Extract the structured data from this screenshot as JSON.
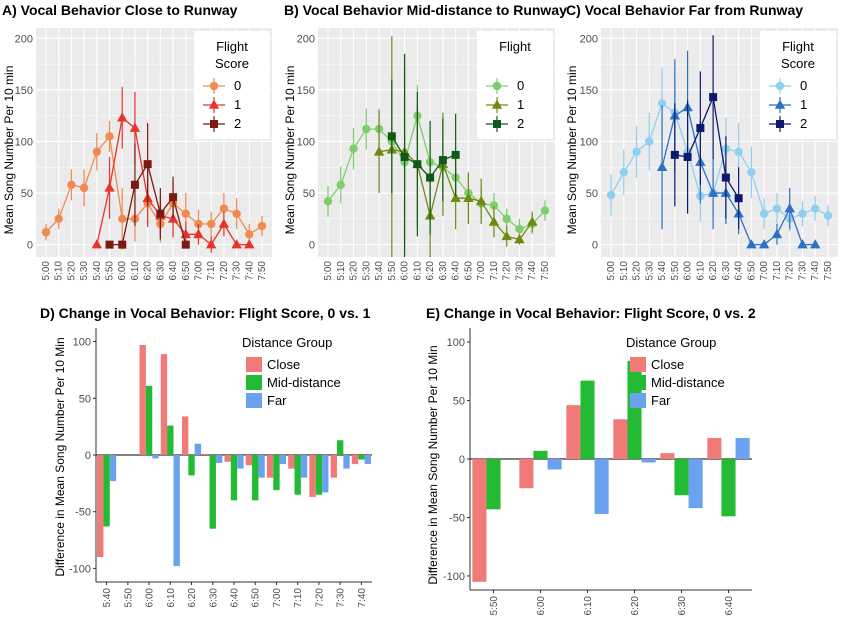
{
  "colors": {
    "panel_bg": "#ebebeb",
    "grid": "#ffffff",
    "A": [
      "#f08a50",
      "#e8332a",
      "#7a1a12"
    ],
    "B": [
      "#7fce6e",
      "#6e8a12",
      "#0f5a14"
    ],
    "C": [
      "#8fd0f0",
      "#2b72c6",
      "#0c1a6e"
    ],
    "bar": [
      "#f07a78",
      "#22bb33",
      "#6aa2f0"
    ]
  },
  "chart_data": [
    {
      "id": "A",
      "type": "line",
      "title": "A) Vocal Behavior Close to Runway",
      "ylabel": "Mean Song Number Per 10 min",
      "ylim": [
        -12,
        210
      ],
      "yticks": [
        0,
        50,
        100,
        150,
        200
      ],
      "x_ticks": [
        "5:00",
        "5:10",
        "5:20",
        "5:30",
        "5:40",
        "5:50",
        "6:00",
        "6:10",
        "6:20",
        "6:30",
        "6:40",
        "6:50",
        "7:00",
        "7:10",
        "7:20",
        "7:30",
        "7:40",
        "7:50"
      ],
      "legend": {
        "title": [
          "Flight",
          "Score"
        ],
        "labels": [
          "0",
          "1",
          "2"
        ],
        "position": "top-right"
      },
      "series": [
        {
          "name": "0",
          "marker": "circle",
          "x": [
            0,
            1,
            2,
            3,
            4,
            5,
            6,
            7,
            8,
            9,
            10,
            11,
            12,
            13,
            14,
            15,
            16,
            17
          ],
          "y": [
            12,
            25,
            58,
            55,
            90,
            105,
            25,
            25,
            40,
            20,
            40,
            30,
            20,
            20,
            35,
            30,
            10,
            18
          ],
          "err": [
            8,
            10,
            15,
            18,
            18,
            15,
            30,
            22,
            20,
            18,
            22,
            20,
            14,
            12,
            15,
            15,
            10,
            10
          ]
        },
        {
          "name": "1",
          "marker": "triangle",
          "x": [
            4,
            5,
            6,
            7,
            8,
            9,
            10,
            11,
            12,
            13,
            14,
            15,
            16
          ],
          "y": [
            0,
            55,
            123,
            113,
            45,
            28,
            25,
            10,
            10,
            0,
            20,
            0,
            0
          ],
          "err": [
            0,
            30,
            30,
            35,
            28,
            20,
            18,
            12,
            10,
            8,
            12,
            0,
            0
          ]
        },
        {
          "name": "2",
          "marker": "square",
          "x": [
            5,
            6,
            7,
            8,
            9,
            10,
            11
          ],
          "y": [
            0,
            0,
            58,
            78,
            30,
            46,
            0
          ],
          "err": [
            0,
            0,
            40,
            40,
            25,
            20,
            0
          ]
        }
      ]
    },
    {
      "id": "B",
      "type": "line",
      "title": "B) Vocal Behavior Mid-distance to Runway",
      "ylabel": "Mean Song Number Per 10 min",
      "ylim": [
        -12,
        210
      ],
      "yticks": [
        0,
        50,
        100,
        150,
        200
      ],
      "x_ticks": [
        "5:00",
        "5:10",
        "5:20",
        "5:30",
        "5:40",
        "5:50",
        "6:00",
        "6:10",
        "6:20",
        "6:30",
        "6:40",
        "6:50",
        "7:00",
        "7:10",
        "7:20",
        "7:30",
        "7:40",
        "7:50"
      ],
      "legend": {
        "title": [
          "Flight",
          ""
        ],
        "labels": [
          "0",
          "1",
          "2"
        ],
        "position": "top-right"
      },
      "series": [
        {
          "name": "0",
          "marker": "circle",
          "x": [
            0,
            1,
            2,
            3,
            4,
            5,
            6,
            7,
            8,
            9,
            10,
            11,
            12,
            13,
            14,
            15,
            16,
            17
          ],
          "y": [
            42,
            58,
            93,
            112,
            112,
            100,
            80,
            125,
            80,
            75,
            65,
            50,
            40,
            38,
            25,
            15,
            20,
            33
          ],
          "err": [
            15,
            18,
            20,
            20,
            20,
            22,
            28,
            30,
            25,
            22,
            20,
            18,
            15,
            12,
            10,
            10,
            10,
            10
          ]
        },
        {
          "name": "1",
          "marker": "triangle",
          "x": [
            4,
            5,
            6,
            7,
            8,
            9,
            10,
            11,
            12,
            13,
            14,
            15,
            16
          ],
          "y": [
            90,
            92,
            90,
            78,
            28,
            78,
            45,
            45,
            42,
            22,
            8,
            5,
            22
          ],
          "err": [
            40,
            110,
            90,
            60,
            50,
            50,
            30,
            25,
            22,
            15,
            10,
            5,
            10
          ]
        },
        {
          "name": "2",
          "marker": "square",
          "x": [
            5,
            6,
            7,
            8,
            9,
            10
          ],
          "y": [
            105,
            85,
            78,
            65,
            82,
            87
          ],
          "err": [
            55,
            100,
            70,
            55,
            40,
            40
          ]
        }
      ]
    },
    {
      "id": "C",
      "type": "line",
      "title": "C) Vocal Behavior Far from Runway",
      "ylabel": "Mean Song Number Per 10 min",
      "ylim": [
        -12,
        210
      ],
      "yticks": [
        0,
        50,
        100,
        150,
        200
      ],
      "x_ticks": [
        "5:00",
        "5:10",
        "5:20",
        "5:30",
        "5:40",
        "5:50",
        "6:00",
        "6:10",
        "6:20",
        "6:30",
        "6:40",
        "6:50",
        "7:00",
        "7:10",
        "7:20",
        "7:30",
        "7:40",
        "7:50"
      ],
      "legend": {
        "title": [
          "Flight",
          "Score"
        ],
        "labels": [
          "0",
          "1",
          "2"
        ],
        "position": "top-right"
      },
      "series": [
        {
          "name": "0",
          "marker": "circle",
          "x": [
            0,
            1,
            2,
            3,
            4,
            5,
            6,
            7,
            8,
            9,
            10,
            11,
            12,
            13,
            14,
            15,
            16,
            17
          ],
          "y": [
            48,
            70,
            90,
            100,
            137,
            128,
            90,
            47,
            50,
            93,
            90,
            70,
            30,
            35,
            25,
            30,
            35,
            28
          ],
          "err": [
            20,
            22,
            25,
            28,
            35,
            35,
            30,
            25,
            25,
            30,
            28,
            25,
            15,
            15,
            12,
            12,
            12,
            10
          ]
        },
        {
          "name": "1",
          "marker": "triangle",
          "x": [
            4,
            5,
            6,
            7,
            8,
            9,
            10,
            11,
            12,
            13,
            14,
            15,
            16
          ],
          "y": [
            75,
            125,
            133,
            80,
            50,
            50,
            30,
            0,
            0,
            10,
            35,
            0,
            0
          ],
          "err": [
            60,
            55,
            55,
            40,
            35,
            30,
            20,
            0,
            0,
            10,
            20,
            0,
            0
          ]
        },
        {
          "name": "2",
          "marker": "square",
          "x": [
            5,
            6,
            7,
            8,
            9,
            10
          ],
          "y": [
            87,
            85,
            113,
            143,
            65,
            45
          ],
          "err": [
            50,
            55,
            55,
            60,
            40,
            30
          ]
        }
      ]
    },
    {
      "id": "D",
      "type": "bar",
      "title": "D) Change in Vocal Behavior: Flight Score, 0 vs. 1",
      "ylabel": "Difference in Mean Song Number Per 10 Min",
      "ylim": [
        -112,
        112
      ],
      "yticks": [
        -100,
        -50,
        0,
        50,
        100
      ],
      "categories": [
        "5:40",
        "5:50",
        "6:00",
        "6:10",
        "6:20",
        "6:30",
        "6:40",
        "6:50",
        "7:00",
        "7:10",
        "7:20",
        "7:30",
        "7:40"
      ],
      "legend": {
        "title": "Distance Group",
        "labels": [
          "Close",
          "Mid-distance",
          "Far"
        ],
        "position": "top-right"
      },
      "series": [
        {
          "name": "Close",
          "values": [
            -90,
            0,
            97,
            89,
            34,
            1,
            -6,
            -9,
            -20,
            -12,
            -37,
            -20,
            -8
          ]
        },
        {
          "name": "Mid-distance",
          "values": [
            -63,
            0,
            61,
            26,
            -18,
            -65,
            -40,
            -40,
            -31,
            -35,
            -35,
            13,
            -4
          ]
        },
        {
          "name": "Far",
          "values": [
            -23,
            0,
            -3,
            -98,
            10,
            -7,
            -12,
            -20,
            -8,
            -20,
            -33,
            -12,
            -8
          ]
        }
      ]
    },
    {
      "id": "E",
      "type": "bar",
      "title": "E) Change in Vocal Behavior: Flight Score, 0 vs. 2",
      "ylabel": "Difference in Mean Song Number Per 10 Min",
      "ylim": [
        -112,
        112
      ],
      "yticks": [
        -100,
        -50,
        0,
        50,
        100
      ],
      "categories": [
        "5:50",
        "6:00",
        "6:10",
        "6:20",
        "6:30",
        "6:40"
      ],
      "legend": {
        "title": "Distance Group",
        "labels": [
          "Close",
          "Mid-distance",
          "Far"
        ],
        "position": "top-right"
      },
      "series": [
        {
          "name": "Close",
          "values": [
            -105,
            -25,
            46,
            34,
            5,
            18
          ]
        },
        {
          "name": "Mid-distance",
          "values": [
            -43,
            7,
            67,
            84,
            -31,
            -49
          ]
        },
        {
          "name": "Far",
          "values": [
            0,
            -9,
            -47,
            -3,
            -42,
            18
          ]
        }
      ]
    }
  ]
}
